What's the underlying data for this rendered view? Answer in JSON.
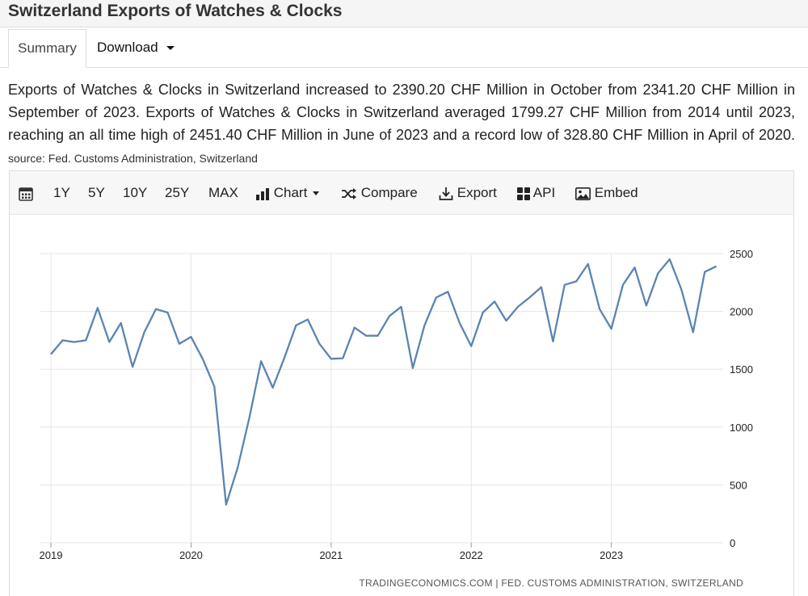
{
  "page": {
    "title": "Switzerland Exports of Watches & Clocks",
    "tabs": {
      "summary": "Summary",
      "download": "Download"
    },
    "summary_text": "Exports of Watches & Clocks in Switzerland increased to 2390.20 CHF Million in October from 2341.20 CHF Million in September of 2023. Exports of Watches & Clocks in Switzerland averaged 1799.27 CHF Million from 2014 until 2023, reaching an all time high of 2451.40 CHF Million in June of 2023 and a record low of 328.80 CHF Million in April of 2020.",
    "source_text": "source: Fed. Customs Administration, Switzerland"
  },
  "toolbar": {
    "range_1y": "1Y",
    "range_5y": "5Y",
    "range_10y": "10Y",
    "range_25y": "25Y",
    "range_max": "MAX",
    "chart": "Chart",
    "compare": "Compare",
    "export": "Export",
    "api": "API",
    "embed": "Embed"
  },
  "colors": {
    "line": "#5b84b1",
    "grid": "#e6e6e6"
  },
  "chart_data": {
    "type": "line",
    "title": "Switzerland Exports of Watches & Clocks",
    "unit": "CHF Million",
    "x_tick_labels": [
      "2019",
      "2020",
      "2021",
      "2022",
      "2023"
    ],
    "y_tick_labels": [
      "2500",
      "2000",
      "1500",
      "1000",
      "500",
      "0"
    ],
    "y_ticks": [
      2500,
      2000,
      1500,
      1000,
      500,
      0
    ],
    "ylim": [
      0,
      2500
    ],
    "xlim": [
      "2019-01",
      "2023-10"
    ],
    "grid": true,
    "credit": "TRADINGECONOMICS.COM | FED. CUSTOMS ADMINISTRATION, SWITZERLAND",
    "series": [
      {
        "name": "Exports of Watches & Clocks",
        "x": [
          "2019-01",
          "2019-02",
          "2019-03",
          "2019-04",
          "2019-05",
          "2019-06",
          "2019-07",
          "2019-08",
          "2019-09",
          "2019-10",
          "2019-11",
          "2019-12",
          "2020-01",
          "2020-02",
          "2020-03",
          "2020-04",
          "2020-05",
          "2020-06",
          "2020-07",
          "2020-08",
          "2020-09",
          "2020-10",
          "2020-11",
          "2020-12",
          "2021-01",
          "2021-02",
          "2021-03",
          "2021-04",
          "2021-05",
          "2021-06",
          "2021-07",
          "2021-08",
          "2021-09",
          "2021-10",
          "2021-11",
          "2021-12",
          "2022-01",
          "2022-02",
          "2022-03",
          "2022-04",
          "2022-05",
          "2022-06",
          "2022-07",
          "2022-08",
          "2022-09",
          "2022-10",
          "2022-11",
          "2022-12",
          "2023-01",
          "2023-02",
          "2023-03",
          "2023-04",
          "2023-05",
          "2023-06",
          "2023-07",
          "2023-08",
          "2023-09",
          "2023-10"
        ],
        "values": [
          1630,
          1750,
          1735,
          1750,
          2030,
          1735,
          1900,
          1520,
          1820,
          2020,
          1990,
          1720,
          1780,
          1590,
          1350,
          328.8,
          650,
          1080,
          1570,
          1340,
          1600,
          1880,
          1930,
          1720,
          1590,
          1595,
          1860,
          1790,
          1790,
          1960,
          2040,
          1510,
          1880,
          2120,
          2170,
          1900,
          1700,
          1990,
          2085,
          1920,
          2040,
          2120,
          2210,
          1740,
          2230,
          2260,
          2410,
          2020,
          1850,
          2230,
          2380,
          2050,
          2330,
          2451.4,
          2190,
          1820,
          2341.2,
          2390.2
        ]
      }
    ]
  }
}
